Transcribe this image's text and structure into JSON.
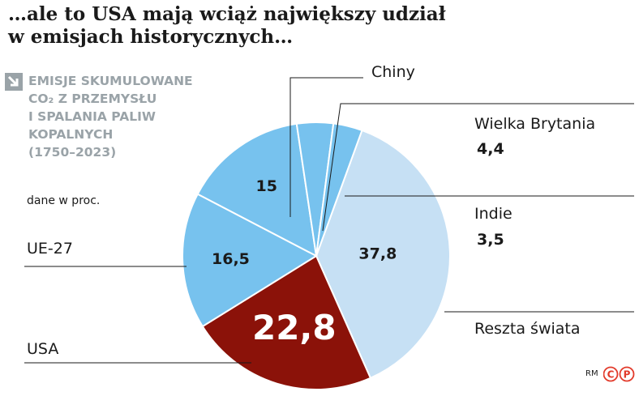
{
  "title_line1": "…ale to USA mają wciąż największy udział",
  "title_line2": "w emisjach historycznych…",
  "subtitle_line1": "EMISJE SKUMULOWANE",
  "subtitle_line2": "CO₂ Z PRZEMYSŁU",
  "subtitle_line3": "I SPALANIA PALIW",
  "subtitle_line4": "KOPALNYCH",
  "subtitle_line5": "(1750–2023)",
  "unit_label": "dane w proc.",
  "credit": "RM",
  "logo_text": "CP",
  "colors": {
    "usa": "#8b1209",
    "eu": "#77c2ee",
    "china": "#77c2ee",
    "uk": "#77c2ee",
    "india": "#77c2ee",
    "rest": "#c6e0f4",
    "logo": "#e23a2a"
  },
  "chart_data": {
    "type": "pie",
    "slices": [
      {
        "name": "Reszta świata",
        "value": 37.8,
        "label": "37,8"
      },
      {
        "name": "USA",
        "value": 22.8,
        "label": "22,8"
      },
      {
        "name": "UE-27",
        "value": 16.5,
        "label": "16,5"
      },
      {
        "name": "Chiny",
        "value": 15,
        "label": "15"
      },
      {
        "name": "Wielka Brytania",
        "value": 4.4,
        "label": "4,4"
      },
      {
        "name": "Indie",
        "value": 3.5,
        "label": "3,5"
      }
    ]
  }
}
